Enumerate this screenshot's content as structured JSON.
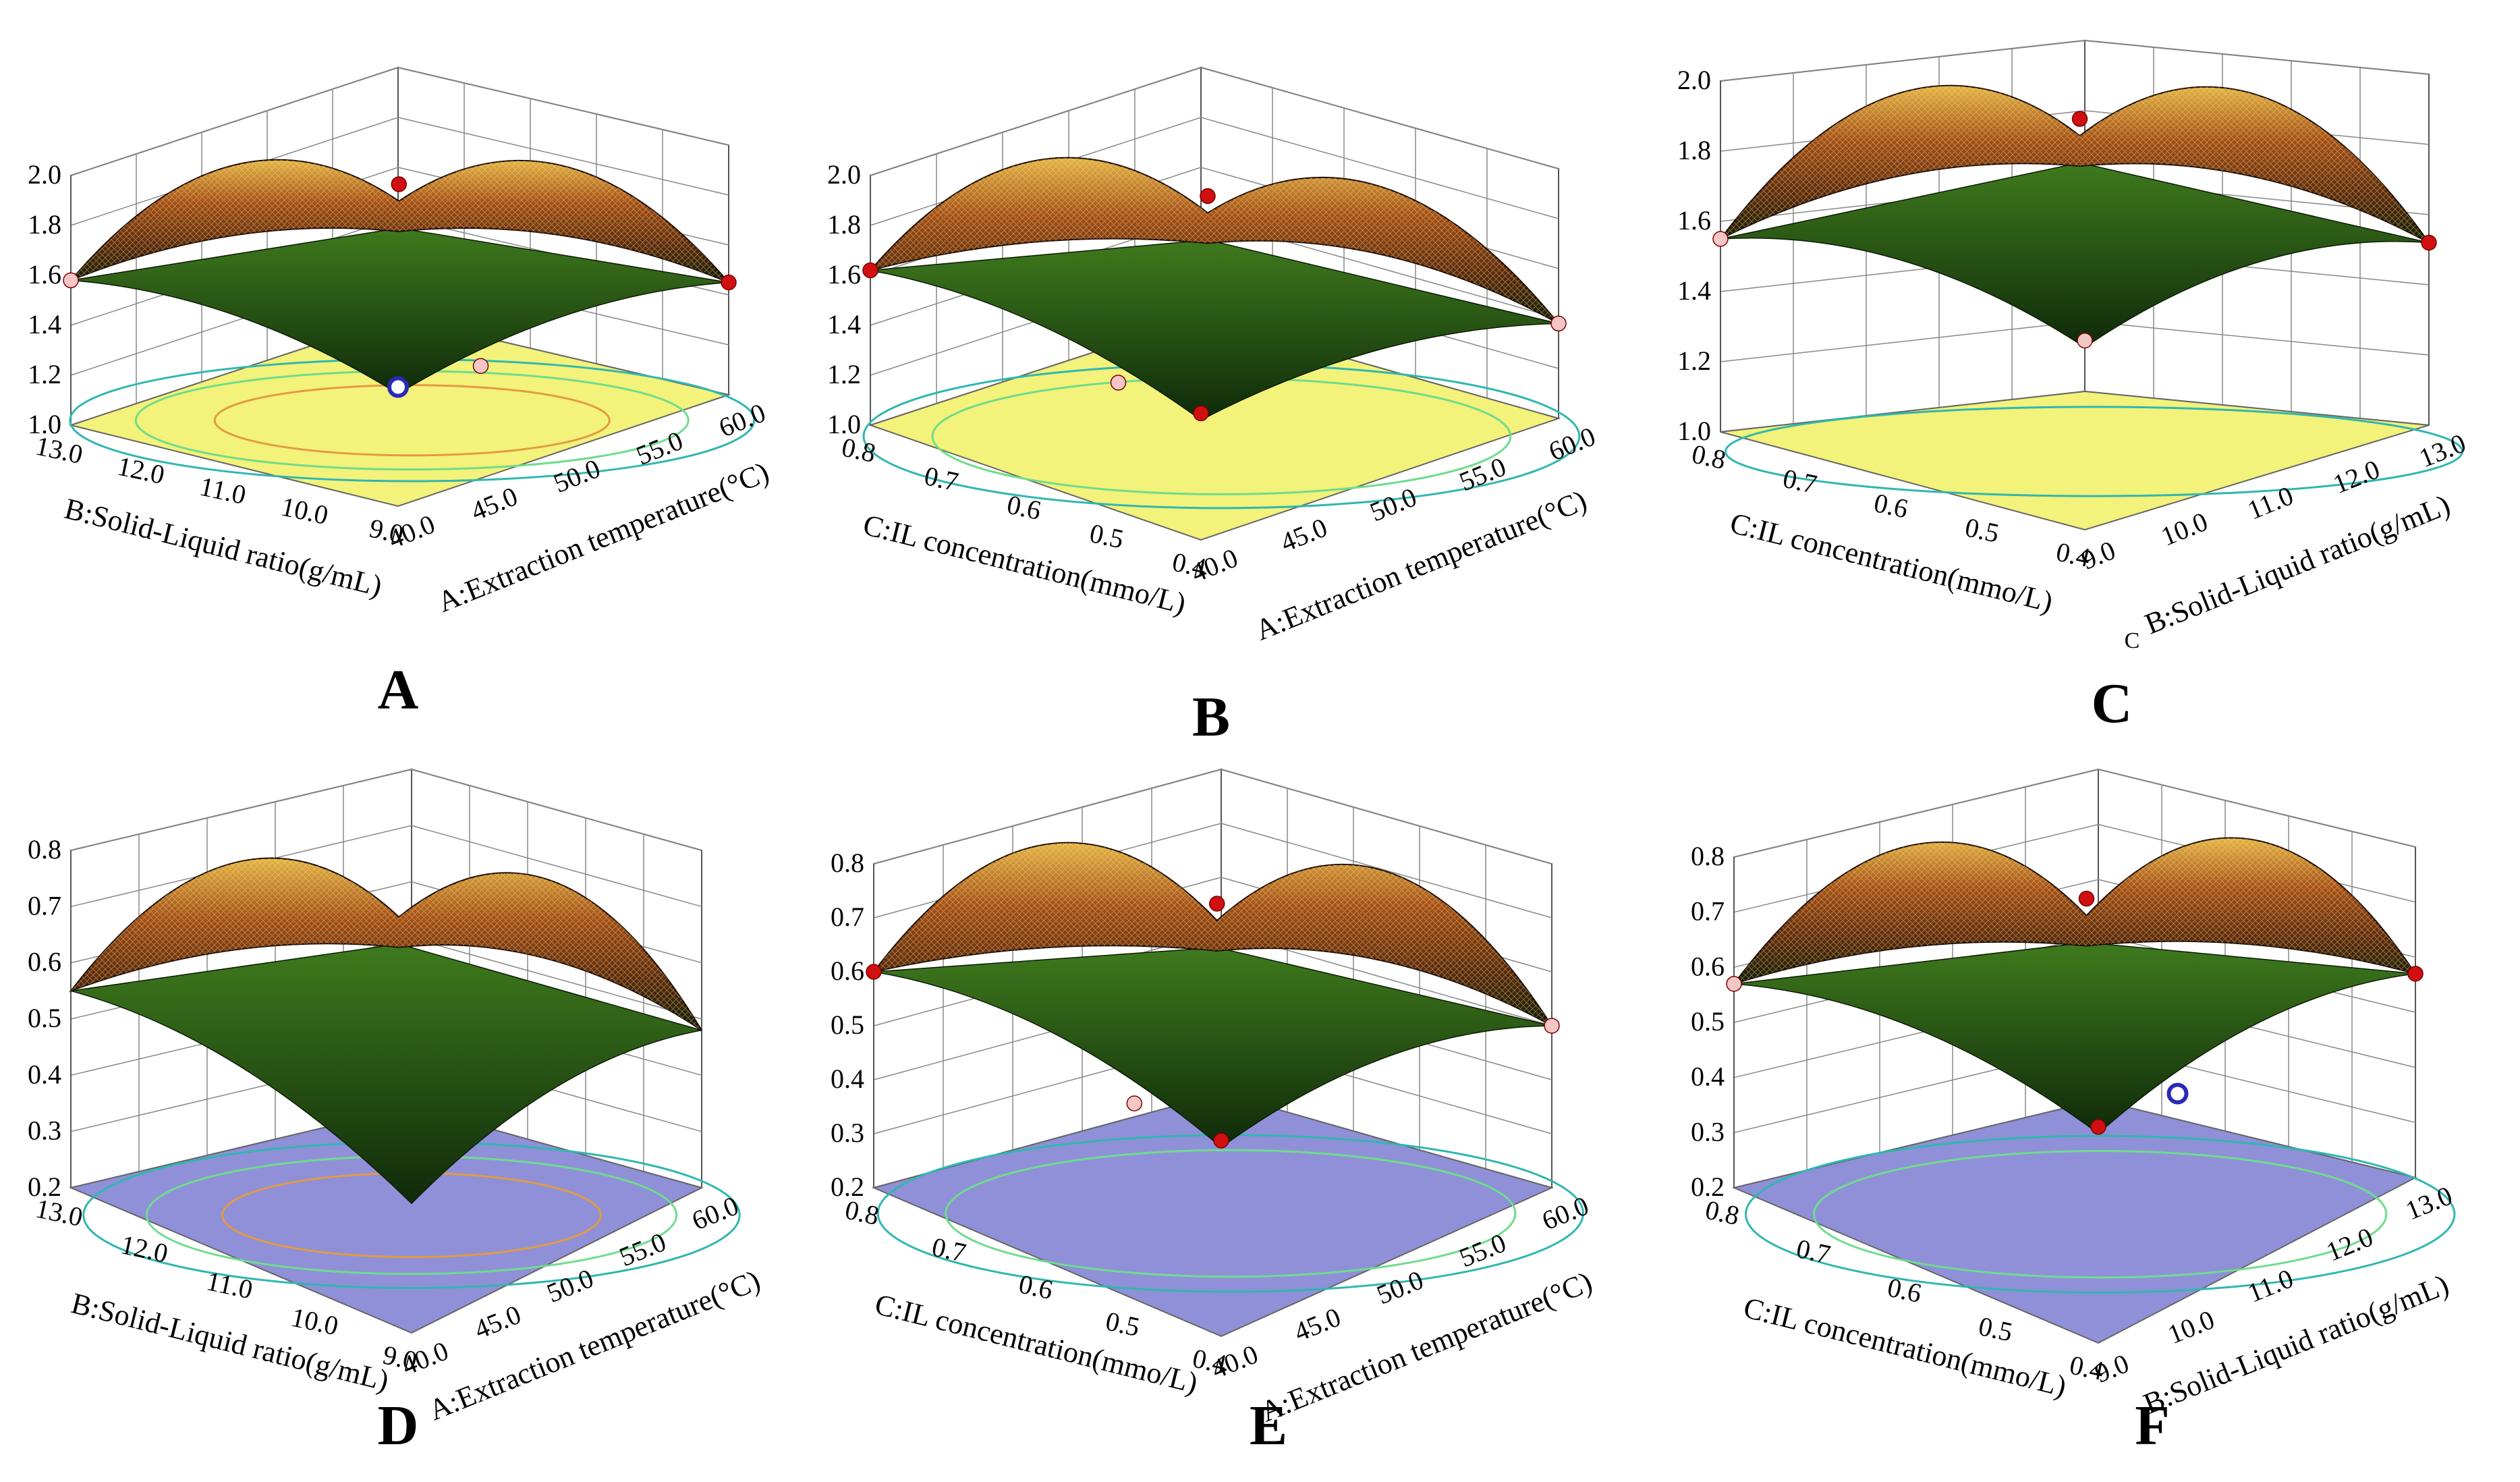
{
  "colors": {
    "yellow_floor": "#f3f27a",
    "blue_floor": "#8f90d8",
    "surface_top": "#d69a2b",
    "surface_mid": "#8a3a14",
    "surface_low": "#1e5a1a",
    "contour_green": "#6fdc8c",
    "contour_orange": "#e39a44",
    "point_red": "#d01010",
    "point_pink": "#f4c6c6",
    "point_blue": "#2a2ab8"
  },
  "chart_data": [
    {
      "type": "surface3d",
      "panel": "A",
      "floor": "yellow",
      "z_ticks": [
        "1.0",
        "1.2",
        "1.4",
        "1.6",
        "1.8",
        "2.0"
      ],
      "ylim": [
        1.0,
        2.0
      ],
      "left_axis": {
        "title": "B:Solid-Liquid ratio(g/mL)",
        "ticks": [
          "13.0",
          "12.0",
          "11.0",
          "10.0",
          "9.0"
        ]
      },
      "right_axis": {
        "title": "A:Extraction temperature(°C)",
        "ticks": [
          "40.0",
          "45.0",
          "50.0",
          "55.0",
          "60.0"
        ]
      },
      "corner_values": {
        "left": 1.58,
        "front": 1.45,
        "right": 1.45,
        "back": 1.62
      },
      "peak": 1.84,
      "contours": [
        "orange",
        "green",
        "teal"
      ],
      "points": [
        {
          "color": "red",
          "value": 1.92,
          "where": "peak"
        },
        {
          "color": "pink",
          "value": 1.58,
          "where": "left"
        },
        {
          "color": "red",
          "value": 1.45,
          "where": "right"
        },
        {
          "color": "blue",
          "value": 1.44,
          "where": "front"
        },
        {
          "color": "pink",
          "value": 1.42,
          "where": "front-right"
        }
      ]
    },
    {
      "type": "surface3d",
      "panel": "B",
      "floor": "yellow",
      "z_ticks": [
        "1.0",
        "1.2",
        "1.4",
        "1.6",
        "1.8",
        "2.0"
      ],
      "ylim": [
        1.0,
        2.0
      ],
      "left_axis": {
        "title": "C:IL concentration(mmo/L)",
        "ticks": [
          "0.8",
          "0.7",
          "0.6",
          "0.5",
          "0.4"
        ]
      },
      "right_axis": {
        "title": "A:Extraction temperature(°C)",
        "ticks": [
          "40.0",
          "45.0",
          "50.0",
          "55.0",
          "60.0"
        ]
      },
      "corner_values": {
        "left": 1.62,
        "front": 1.48,
        "right": 1.38,
        "back": 1.65
      },
      "peak": 1.85,
      "contours": [
        "green",
        "teal"
      ],
      "points": [
        {
          "color": "red",
          "value": 1.93,
          "where": "peak"
        },
        {
          "color": "red",
          "value": 1.62,
          "where": "left"
        },
        {
          "color": "pink",
          "value": 1.38,
          "where": "right"
        },
        {
          "color": "red",
          "value": 1.46,
          "where": "front"
        },
        {
          "color": "pink",
          "value": 1.48,
          "where": "front-left"
        }
      ]
    },
    {
      "type": "surface3d",
      "panel": "C",
      "floor": "yellow",
      "z_ticks": [
        "1.0",
        "1.2",
        "1.4",
        "1.6",
        "1.8",
        "2.0"
      ],
      "ylim": [
        1.0,
        2.0
      ],
      "left_axis": {
        "title": "C:IL concentration(mmo/L)",
        "ticks": [
          "0.8",
          "0.7",
          "0.6",
          "0.5",
          "0.4"
        ]
      },
      "right_axis": {
        "title": "B:Solid-Liquid ratio(g/mL)",
        "ticks": [
          "9.0",
          "10.0",
          "11.0",
          "12.0",
          "13.0"
        ]
      },
      "corner_values": {
        "left": 1.55,
        "front": 1.52,
        "right": 1.52,
        "back": 1.7
      },
      "peak": 1.88,
      "contours": [
        "teal"
      ],
      "note": "C",
      "points": [
        {
          "color": "red",
          "value": 1.98,
          "where": "peak"
        },
        {
          "color": "pink",
          "value": 1.55,
          "where": "left"
        },
        {
          "color": "red",
          "value": 1.52,
          "where": "right"
        },
        {
          "color": "pink",
          "value": 1.52,
          "where": "front"
        }
      ]
    },
    {
      "type": "surface3d",
      "panel": "D",
      "floor": "blue",
      "z_ticks": [
        "0.2",
        "0.3",
        "0.4",
        "0.5",
        "0.6",
        "0.7",
        "0.8"
      ],
      "ylim": [
        0.2,
        0.8
      ],
      "left_axis": {
        "title": "B:Solid-Liquid ratio(g/mL)",
        "ticks": [
          "13.0",
          "12.0",
          "11.0",
          "10.0",
          "9.0"
        ]
      },
      "right_axis": {
        "title": "A:Extraction temperature(°C)",
        "ticks": [
          "40.0",
          "45.0",
          "50.0",
          "55.0",
          "60.0"
        ]
      },
      "corner_values": {
        "left": 0.55,
        "front": 0.43,
        "right": 0.48,
        "back": 0.55
      },
      "peak": 0.71,
      "contours": [
        "orange",
        "green",
        "teal"
      ],
      "points": []
    },
    {
      "type": "surface3d",
      "panel": "E",
      "floor": "blue",
      "z_ticks": [
        "0.2",
        "0.3",
        "0.4",
        "0.5",
        "0.6",
        "0.7",
        "0.8"
      ],
      "ylim": [
        0.2,
        0.8
      ],
      "left_axis": {
        "title": "C:IL concentration(mmo/L)",
        "ticks": [
          "0.8",
          "0.7",
          "0.6",
          "0.5",
          "0.4"
        ]
      },
      "right_axis": {
        "title": "A:Extraction temperature(°C)",
        "ticks": [
          "40.0",
          "45.0",
          "50.0",
          "55.0",
          "60.0"
        ]
      },
      "corner_values": {
        "left": 0.6,
        "front": 0.55,
        "right": 0.5,
        "back": 0.62
      },
      "peak": 0.72,
      "contours": [
        "green",
        "teal"
      ],
      "points": [
        {
          "color": "red",
          "value": 0.74,
          "where": "peak"
        },
        {
          "color": "red",
          "value": 0.6,
          "where": "left"
        },
        {
          "color": "pink",
          "value": 0.5,
          "where": "right"
        },
        {
          "color": "red",
          "value": 0.55,
          "where": "front"
        },
        {
          "color": "pink",
          "value": 0.5,
          "where": "front-left"
        }
      ]
    },
    {
      "type": "surface3d",
      "panel": "F",
      "floor": "blue",
      "z_ticks": [
        "0.2",
        "0.3",
        "0.4",
        "0.5",
        "0.6",
        "0.7",
        "0.8"
      ],
      "ylim": [
        0.2,
        0.8
      ],
      "left_axis": {
        "title": "C:IL concentration(mmo/L)",
        "ticks": [
          "0.8",
          "0.7",
          "0.6",
          "0.5",
          "0.4"
        ]
      },
      "right_axis": {
        "title": "B:Solid-Liquid ratio(g/mL)",
        "ticks": [
          "9.0",
          "10.0",
          "11.0",
          "12.0",
          "13.0"
        ]
      },
      "corner_values": {
        "left": 0.57,
        "front": 0.58,
        "right": 0.57,
        "back": 0.64
      },
      "peak": 0.72,
      "contours": [
        "green",
        "teal"
      ],
      "points": [
        {
          "color": "red",
          "value": 0.76,
          "where": "peak"
        },
        {
          "color": "pink",
          "value": 0.57,
          "where": "left"
        },
        {
          "color": "red",
          "value": 0.57,
          "where": "right"
        },
        {
          "color": "red",
          "value": 0.58,
          "where": "front"
        },
        {
          "color": "blue",
          "value": 0.52,
          "where": "front-right"
        }
      ]
    }
  ]
}
